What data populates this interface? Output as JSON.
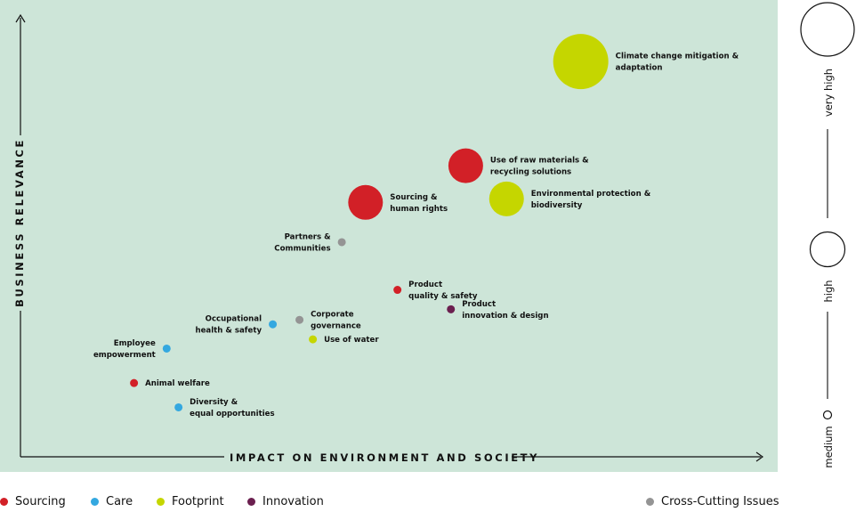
{
  "chart_data": {
    "type": "scatter",
    "xlabel": "IMPACT ON ENVIRONMENT AND SOCIETY",
    "ylabel": "BUSINESS RELEVANCE",
    "size_scale": {
      "labels": [
        "medium",
        "high",
        "very high"
      ]
    },
    "categories": [
      {
        "key": "sourcing",
        "name": "Sourcing",
        "color": "#d22027"
      },
      {
        "key": "care",
        "name": "Care",
        "color": "#34a8e0"
      },
      {
        "key": "footprint",
        "name": "Footprint",
        "color": "#c5d600"
      },
      {
        "key": "innovation",
        "name": "Innovation",
        "color": "#6b1f4f"
      },
      {
        "key": "cross",
        "name": "Cross-Cutting Issues",
        "color": "#949494"
      }
    ],
    "points": [
      {
        "lines": [
          "Climate change mitigation &",
          "adaptation"
        ],
        "category": "footprint",
        "size": "very high",
        "x": 0.755,
        "y": 0.895
      },
      {
        "lines": [
          "Use of raw materials &",
          "recycling solutions"
        ],
        "category": "sourcing",
        "size": "high",
        "x": 0.6,
        "y": 0.659
      },
      {
        "lines": [
          "Environmental protection &",
          "biodiversity"
        ],
        "category": "footprint",
        "size": "high",
        "x": 0.655,
        "y": 0.584
      },
      {
        "lines": [
          "Sourcing &",
          "human rights"
        ],
        "category": "sourcing",
        "size": "high",
        "x": 0.465,
        "y": 0.576
      },
      {
        "lines": [
          "Partners &",
          "Communities"
        ],
        "category": "cross",
        "size": "medium",
        "x": 0.433,
        "y": 0.486
      },
      {
        "lines": [
          "Product",
          "quality & safety"
        ],
        "category": "sourcing",
        "size": "medium",
        "x": 0.508,
        "y": 0.378
      },
      {
        "lines": [
          "Product",
          "innovation & design"
        ],
        "category": "innovation",
        "size": "medium",
        "x": 0.58,
        "y": 0.334
      },
      {
        "lines": [
          "Corporate",
          "governance"
        ],
        "category": "cross",
        "size": "medium",
        "x": 0.376,
        "y": 0.31
      },
      {
        "lines": [
          "Occupational",
          "health & safety"
        ],
        "category": "care",
        "size": "medium",
        "x": 0.34,
        "y": 0.3
      },
      {
        "lines": [
          "Use of water"
        ],
        "category": "footprint",
        "size": "medium",
        "x": 0.394,
        "y": 0.266
      },
      {
        "lines": [
          "Employee",
          "empowerment"
        ],
        "category": "care",
        "size": "medium",
        "x": 0.197,
        "y": 0.245
      },
      {
        "lines": [
          "Animal welfare"
        ],
        "category": "sourcing",
        "size": "medium",
        "x": 0.153,
        "y": 0.167
      },
      {
        "lines": [
          "Diversity &",
          "equal opportunities"
        ],
        "category": "care",
        "size": "medium",
        "x": 0.213,
        "y": 0.112
      }
    ]
  }
}
